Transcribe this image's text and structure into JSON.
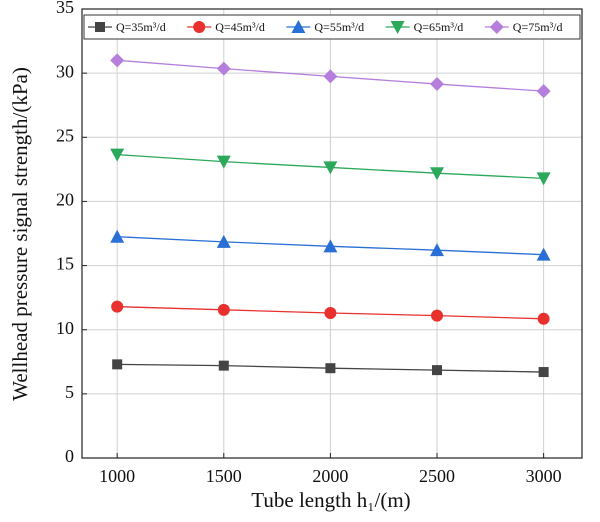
{
  "chart_data": {
    "type": "line",
    "x_label": "Tube length h₁/(m)",
    "y_label": "Wellhead pressure signal strength/(kPa)",
    "x": [
      1000,
      1500,
      2000,
      2500,
      3000
    ],
    "xlim": [
      835,
      3180
    ],
    "xticks": [
      1000,
      1500,
      2000,
      2500,
      3000
    ],
    "ylim": [
      0,
      35
    ],
    "yticks": [
      0,
      5,
      10,
      15,
      20,
      25,
      30,
      35
    ],
    "grid": true,
    "legend_location": "top",
    "series": [
      {
        "name": "Q=35m³/d",
        "color": "#444444",
        "marker": "square",
        "values": [
          7.3,
          7.2,
          7.0,
          6.85,
          6.7
        ]
      },
      {
        "name": "Q=45m³/d",
        "color": "#e8302e",
        "marker": "circle",
        "values": [
          11.8,
          11.55,
          11.3,
          11.1,
          10.85
        ]
      },
      {
        "name": "Q=55m³/d",
        "color": "#2a6fd6",
        "marker": "triangle-up",
        "values": [
          17.25,
          16.85,
          16.5,
          16.2,
          15.85
        ]
      },
      {
        "name": "Q=65m³/d",
        "color": "#2ca85a",
        "marker": "triangle-down",
        "values": [
          23.65,
          23.1,
          22.65,
          22.2,
          21.8
        ]
      },
      {
        "name": "Q=75m³/d",
        "color": "#b57edc",
        "marker": "diamond",
        "values": [
          31.0,
          30.35,
          29.75,
          29.15,
          28.6
        ]
      }
    ]
  }
}
